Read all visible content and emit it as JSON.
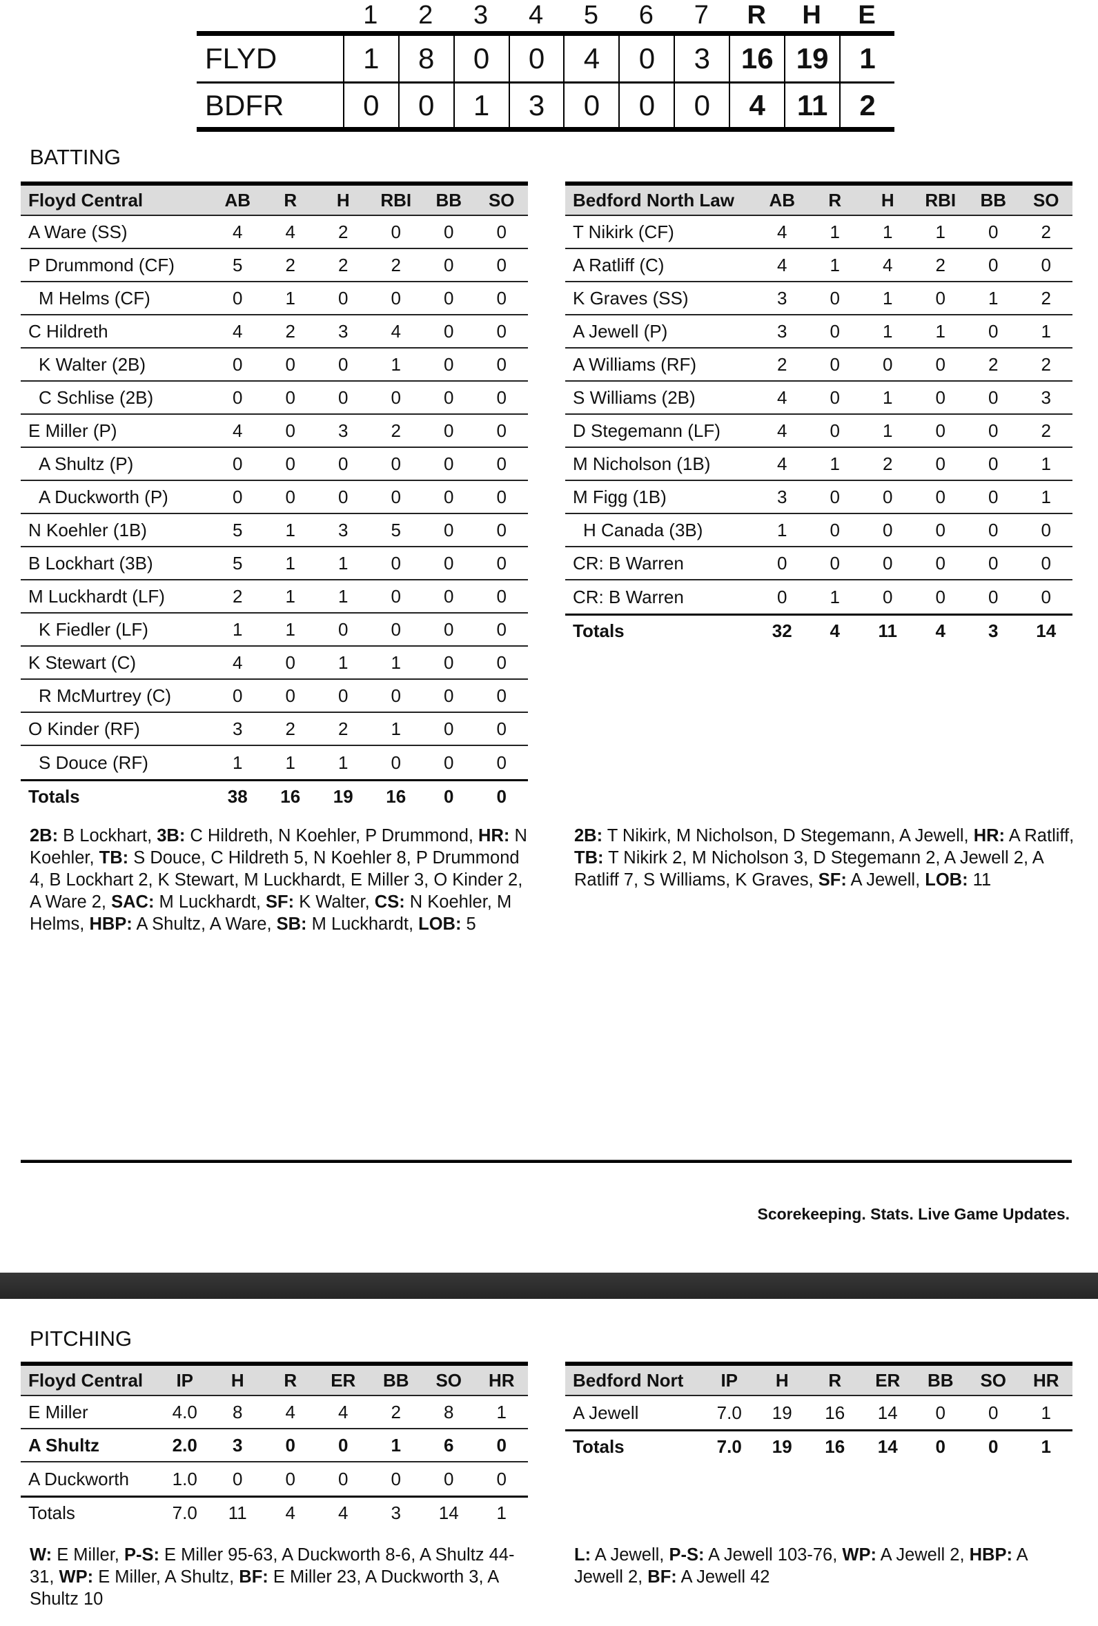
{
  "linescore": {
    "headers": [
      "1",
      "2",
      "3",
      "4",
      "5",
      "6",
      "7",
      "R",
      "H",
      "E"
    ],
    "rows": [
      {
        "team": "FLYD",
        "values": [
          "1",
          "8",
          "0",
          "0",
          "4",
          "0",
          "3",
          "16",
          "19",
          "1"
        ]
      },
      {
        "team": "BDFR",
        "values": [
          "0",
          "0",
          "1",
          "3",
          "0",
          "0",
          "0",
          "4",
          "11",
          "2"
        ]
      }
    ]
  },
  "batting": {
    "title": "BATTING",
    "home": {
      "team": "Floyd Central",
      "columns": [
        "AB",
        "R",
        "H",
        "RBI",
        "BB",
        "SO"
      ],
      "rows": [
        {
          "name": "A Ware (SS)",
          "sub": false,
          "stats": [
            "4",
            "4",
            "2",
            "0",
            "0",
            "0"
          ]
        },
        {
          "name": "P Drummond (CF)",
          "sub": false,
          "stats": [
            "5",
            "2",
            "2",
            "2",
            "0",
            "0"
          ]
        },
        {
          "name": "M Helms (CF)",
          "sub": true,
          "stats": [
            "0",
            "1",
            "0",
            "0",
            "0",
            "0"
          ]
        },
        {
          "name": "C Hildreth",
          "sub": false,
          "stats": [
            "4",
            "2",
            "3",
            "4",
            "0",
            "0"
          ]
        },
        {
          "name": "K Walter (2B)",
          "sub": true,
          "stats": [
            "0",
            "0",
            "0",
            "1",
            "0",
            "0"
          ]
        },
        {
          "name": "C Schlise (2B)",
          "sub": true,
          "stats": [
            "0",
            "0",
            "0",
            "0",
            "0",
            "0"
          ]
        },
        {
          "name": "E Miller (P)",
          "sub": false,
          "stats": [
            "4",
            "0",
            "3",
            "2",
            "0",
            "0"
          ]
        },
        {
          "name": "A Shultz (P)",
          "sub": true,
          "stats": [
            "0",
            "0",
            "0",
            "0",
            "0",
            "0"
          ]
        },
        {
          "name": "A Duckworth (P)",
          "sub": true,
          "stats": [
            "0",
            "0",
            "0",
            "0",
            "0",
            "0"
          ]
        },
        {
          "name": "N Koehler (1B)",
          "sub": false,
          "stats": [
            "5",
            "1",
            "3",
            "5",
            "0",
            "0"
          ]
        },
        {
          "name": "B Lockhart (3B)",
          "sub": false,
          "stats": [
            "5",
            "1",
            "1",
            "0",
            "0",
            "0"
          ]
        },
        {
          "name": "M Luckhardt (LF)",
          "sub": false,
          "stats": [
            "2",
            "1",
            "1",
            "0",
            "0",
            "0"
          ]
        },
        {
          "name": "K Fiedler (LF)",
          "sub": true,
          "stats": [
            "1",
            "1",
            "0",
            "0",
            "0",
            "0"
          ]
        },
        {
          "name": "K Stewart (C)",
          "sub": false,
          "stats": [
            "4",
            "0",
            "1",
            "1",
            "0",
            "0"
          ]
        },
        {
          "name": "R McMurtrey (C)",
          "sub": true,
          "stats": [
            "0",
            "0",
            "0",
            "0",
            "0",
            "0"
          ]
        },
        {
          "name": "O Kinder (RF)",
          "sub": false,
          "stats": [
            "3",
            "2",
            "2",
            "1",
            "0",
            "0"
          ]
        },
        {
          "name": "S Douce (RF)",
          "sub": true,
          "stats": [
            "1",
            "1",
            "1",
            "0",
            "0",
            "0"
          ]
        }
      ],
      "totals": {
        "name": "Totals",
        "stats": [
          "38",
          "16",
          "19",
          "16",
          "0",
          "0"
        ]
      },
      "notes": [
        {
          "label": "2B:",
          "text": " B Lockhart, "
        },
        {
          "label": "3B:",
          "text": " C Hildreth, N Koehler, P Drummond, "
        },
        {
          "label": "HR:",
          "text": " N Koehler, "
        },
        {
          "label": "TB:",
          "text": " S Douce, C Hildreth 5, N Koehler 8, P Drummond 4, B Lockhart 2, K Stewart, M Luckhardt, E Miller 3, O Kinder 2, A Ware 2, "
        },
        {
          "label": "SAC:",
          "text": " M Luckhardt, "
        },
        {
          "label": "SF:",
          "text": " K Walter, "
        },
        {
          "label": "CS:",
          "text": " N Koehler, M Helms, "
        },
        {
          "label": "HBP:",
          "text": " A Shultz, A Ware, "
        },
        {
          "label": "SB:",
          "text": " M Luckhardt, "
        },
        {
          "label": "LOB:",
          "text": " 5"
        }
      ]
    },
    "away": {
      "team": "Bedford North Law",
      "columns": [
        "AB",
        "R",
        "H",
        "RBI",
        "BB",
        "SO"
      ],
      "rows": [
        {
          "name": "T Nikirk (CF)",
          "sub": false,
          "stats": [
            "4",
            "1",
            "1",
            "1",
            "0",
            "2"
          ]
        },
        {
          "name": "A Ratliff (C)",
          "sub": false,
          "stats": [
            "4",
            "1",
            "4",
            "2",
            "0",
            "0"
          ]
        },
        {
          "name": "K Graves (SS)",
          "sub": false,
          "stats": [
            "3",
            "0",
            "1",
            "0",
            "1",
            "2"
          ]
        },
        {
          "name": "A Jewell (P)",
          "sub": false,
          "stats": [
            "3",
            "0",
            "1",
            "1",
            "0",
            "1"
          ]
        },
        {
          "name": "A Williams (RF)",
          "sub": false,
          "stats": [
            "2",
            "0",
            "0",
            "0",
            "2",
            "2"
          ]
        },
        {
          "name": "S Williams (2B)",
          "sub": false,
          "stats": [
            "4",
            "0",
            "1",
            "0",
            "0",
            "3"
          ]
        },
        {
          "name": "D Stegemann (LF)",
          "sub": false,
          "stats": [
            "4",
            "0",
            "1",
            "0",
            "0",
            "2"
          ]
        },
        {
          "name": "M Nicholson (1B)",
          "sub": false,
          "stats": [
            "4",
            "1",
            "2",
            "0",
            "0",
            "1"
          ]
        },
        {
          "name": "M Figg (1B)",
          "sub": false,
          "stats": [
            "3",
            "0",
            "0",
            "0",
            "0",
            "1"
          ]
        },
        {
          "name": "H Canada (3B)",
          "sub": true,
          "stats": [
            "1",
            "0",
            "0",
            "0",
            "0",
            "0"
          ]
        },
        {
          "name": "CR: B Warren",
          "sub": false,
          "stats": [
            "0",
            "0",
            "0",
            "0",
            "0",
            "0"
          ]
        },
        {
          "name": "CR: B Warren",
          "sub": false,
          "stats": [
            "0",
            "1",
            "0",
            "0",
            "0",
            "0"
          ]
        }
      ],
      "totals": {
        "name": "Totals",
        "stats": [
          "32",
          "4",
          "11",
          "4",
          "3",
          "14"
        ]
      },
      "notes": [
        {
          "label": "2B:",
          "text": " T Nikirk, M Nicholson, D Stegemann, A Jewell, "
        },
        {
          "label": "HR:",
          "text": " A Ratliff, "
        },
        {
          "label": "TB:",
          "text": " T Nikirk 2, M Nicholson 3, D Stegemann 2, A Jewell 2, A Ratliff 7, S Williams, K Graves, "
        },
        {
          "label": "SF:",
          "text": " A Jewell, "
        },
        {
          "label": "LOB:",
          "text": " 11"
        }
      ]
    }
  },
  "footer": {
    "tagline": "Scorekeeping. Stats. Live Game Updates."
  },
  "pitching": {
    "title": "PITCHING",
    "home": {
      "team": "Floyd Central",
      "columns": [
        "IP",
        "H",
        "R",
        "ER",
        "BB",
        "SO",
        "HR"
      ],
      "rows": [
        {
          "name": "E Miller",
          "bold": false,
          "stats": [
            "4.0",
            "8",
            "4",
            "4",
            "2",
            "8",
            "1"
          ]
        },
        {
          "name": "A Shultz",
          "bold": true,
          "stats": [
            "2.0",
            "3",
            "0",
            "0",
            "1",
            "6",
            "0"
          ]
        },
        {
          "name": "A Duckworth",
          "bold": false,
          "stats": [
            "1.0",
            "0",
            "0",
            "0",
            "0",
            "0",
            "0"
          ]
        }
      ],
      "totals": {
        "name": "Totals",
        "bold": false,
        "stats": [
          "7.0",
          "11",
          "4",
          "4",
          "3",
          "14",
          "1"
        ]
      },
      "notes": [
        {
          "label": "W:",
          "text": " E Miller, "
        },
        {
          "label": "P-S:",
          "text": " E Miller 95-63, A Duckworth 8-6, A Shultz 44-31, "
        },
        {
          "label": "WP:",
          "text": " E Miller, A Shultz, "
        },
        {
          "label": "BF:",
          "text": " E Miller 23, A Duckworth 3, A Shultz 10"
        }
      ]
    },
    "away": {
      "team": "Bedford Nort",
      "columns": [
        "IP",
        "H",
        "R",
        "ER",
        "BB",
        "SO",
        "HR"
      ],
      "rows": [
        {
          "name": "A Jewell",
          "bold": false,
          "stats": [
            "7.0",
            "19",
            "16",
            "14",
            "0",
            "0",
            "1"
          ]
        }
      ],
      "totals": {
        "name": "Totals",
        "bold": true,
        "stats": [
          "7.0",
          "19",
          "16",
          "14",
          "0",
          "0",
          "1"
        ]
      },
      "notes": [
        {
          "label": "L:",
          "text": " A Jewell, "
        },
        {
          "label": "P-S:",
          "text": " A Jewell 103-76, "
        },
        {
          "label": "WP:",
          "text": " A Jewell 2, "
        },
        {
          "label": "HBP:",
          "text": " A Jewell 2, "
        },
        {
          "label": "BF:",
          "text": " A Jewell 42"
        }
      ]
    }
  }
}
